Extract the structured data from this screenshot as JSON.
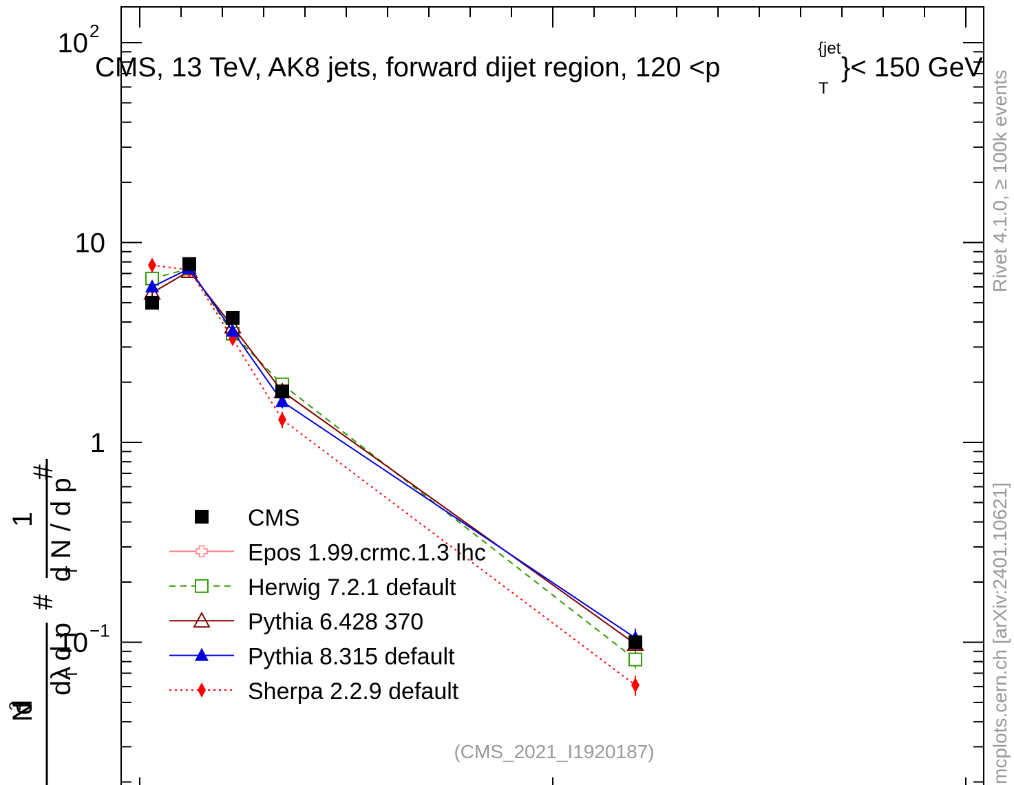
{
  "chart_data": {
    "type": "line",
    "title": "CMS, 13 TeV, AK8 jets, forward dijet region, 120 <p",
    "title_sup": "{jet",
    "title_sub": "T",
    "title_end": "}< 150 GeV",
    "ylabel": {
      "prefix": "#",
      "frac1_num": "1",
      "frac1_den": "d N / d p",
      "frac1_den_sub": "T",
      "hash2": "#",
      "frac2_num": "d",
      "frac2_num_sup": "2",
      "frac2_num_end": "N",
      "frac2_den": "d p",
      "frac2_den_sub": "T",
      "frac2_den_end": " dλ"
    },
    "yscale": "log",
    "ylim": [
      0.02,
      130
    ],
    "ytick_labels": [
      {
        "value": 100,
        "base": "10",
        "exp": "2"
      },
      {
        "value": 10,
        "base": "10",
        "exp": ""
      },
      {
        "value": 1,
        "base": "1",
        "exp": ""
      },
      {
        "value": 0.1,
        "base": "10",
        "exp": "−1"
      }
    ],
    "series": [
      {
        "name": "CMS",
        "style": "data",
        "color": "#000000",
        "marker": "square-filled",
        "points": [
          [
            0.02,
            5.0
          ],
          [
            0.08,
            7.8
          ],
          [
            0.15,
            4.2
          ],
          [
            0.23,
            1.8
          ],
          [
            0.8,
            0.1
          ]
        ],
        "errors": [
          0.3,
          0.3,
          0.25,
          0.12,
          0.01
        ]
      },
      {
        "name": "Epos 1.99.crmc.1.3 lhc",
        "style": "solid",
        "color": "#ff7f7f",
        "marker": "cross-open",
        "points": [],
        "errors": []
      },
      {
        "name": "Herwig 7.2.1 default",
        "style": "dashed",
        "color": "#339900",
        "marker": "square-open",
        "points": [
          [
            0.02,
            6.6
          ],
          [
            0.08,
            7.4
          ],
          [
            0.15,
            3.5
          ],
          [
            0.23,
            1.95
          ],
          [
            0.8,
            0.082
          ]
        ],
        "errors": [
          0.3,
          0.3,
          0.2,
          0.12,
          0.008
        ]
      },
      {
        "name": "Pythia 6.428 370",
        "style": "solid",
        "color": "#7f0000",
        "marker": "triangle-open",
        "points": [
          [
            0.02,
            5.6
          ],
          [
            0.08,
            7.2
          ],
          [
            0.15,
            3.8
          ],
          [
            0.23,
            1.8
          ],
          [
            0.8,
            0.098
          ]
        ],
        "errors": [
          0.25,
          0.3,
          0.2,
          0.12,
          0.008
        ]
      },
      {
        "name": "Pythia 8.315 default",
        "style": "solid",
        "color": "#0000dd",
        "marker": "triangle-filled",
        "points": [
          [
            0.02,
            6.0
          ],
          [
            0.08,
            7.4
          ],
          [
            0.15,
            3.6
          ],
          [
            0.23,
            1.6
          ],
          [
            0.8,
            0.105
          ]
        ],
        "errors": [
          0.3,
          0.3,
          0.2,
          0.12,
          0.012
        ]
      },
      {
        "name": "Sherpa 2.2.9 default",
        "style": "dotted",
        "color": "#ff0000",
        "marker": "diamond-filled",
        "points": [
          [
            0.02,
            7.7
          ],
          [
            0.08,
            7.3
          ],
          [
            0.15,
            3.3
          ],
          [
            0.23,
            1.3
          ],
          [
            0.8,
            0.061
          ]
        ],
        "errors": [
          0.3,
          0.3,
          0.2,
          0.12,
          0.007
        ]
      }
    ],
    "legend_position": "center-left",
    "watermark": "(CMS_2021_I1920187)",
    "side_label": "Rivet 4.1.0, ≥ 100k events",
    "side_label_2": "mcplots.cern.ch [arXiv:2401.10621]"
  }
}
